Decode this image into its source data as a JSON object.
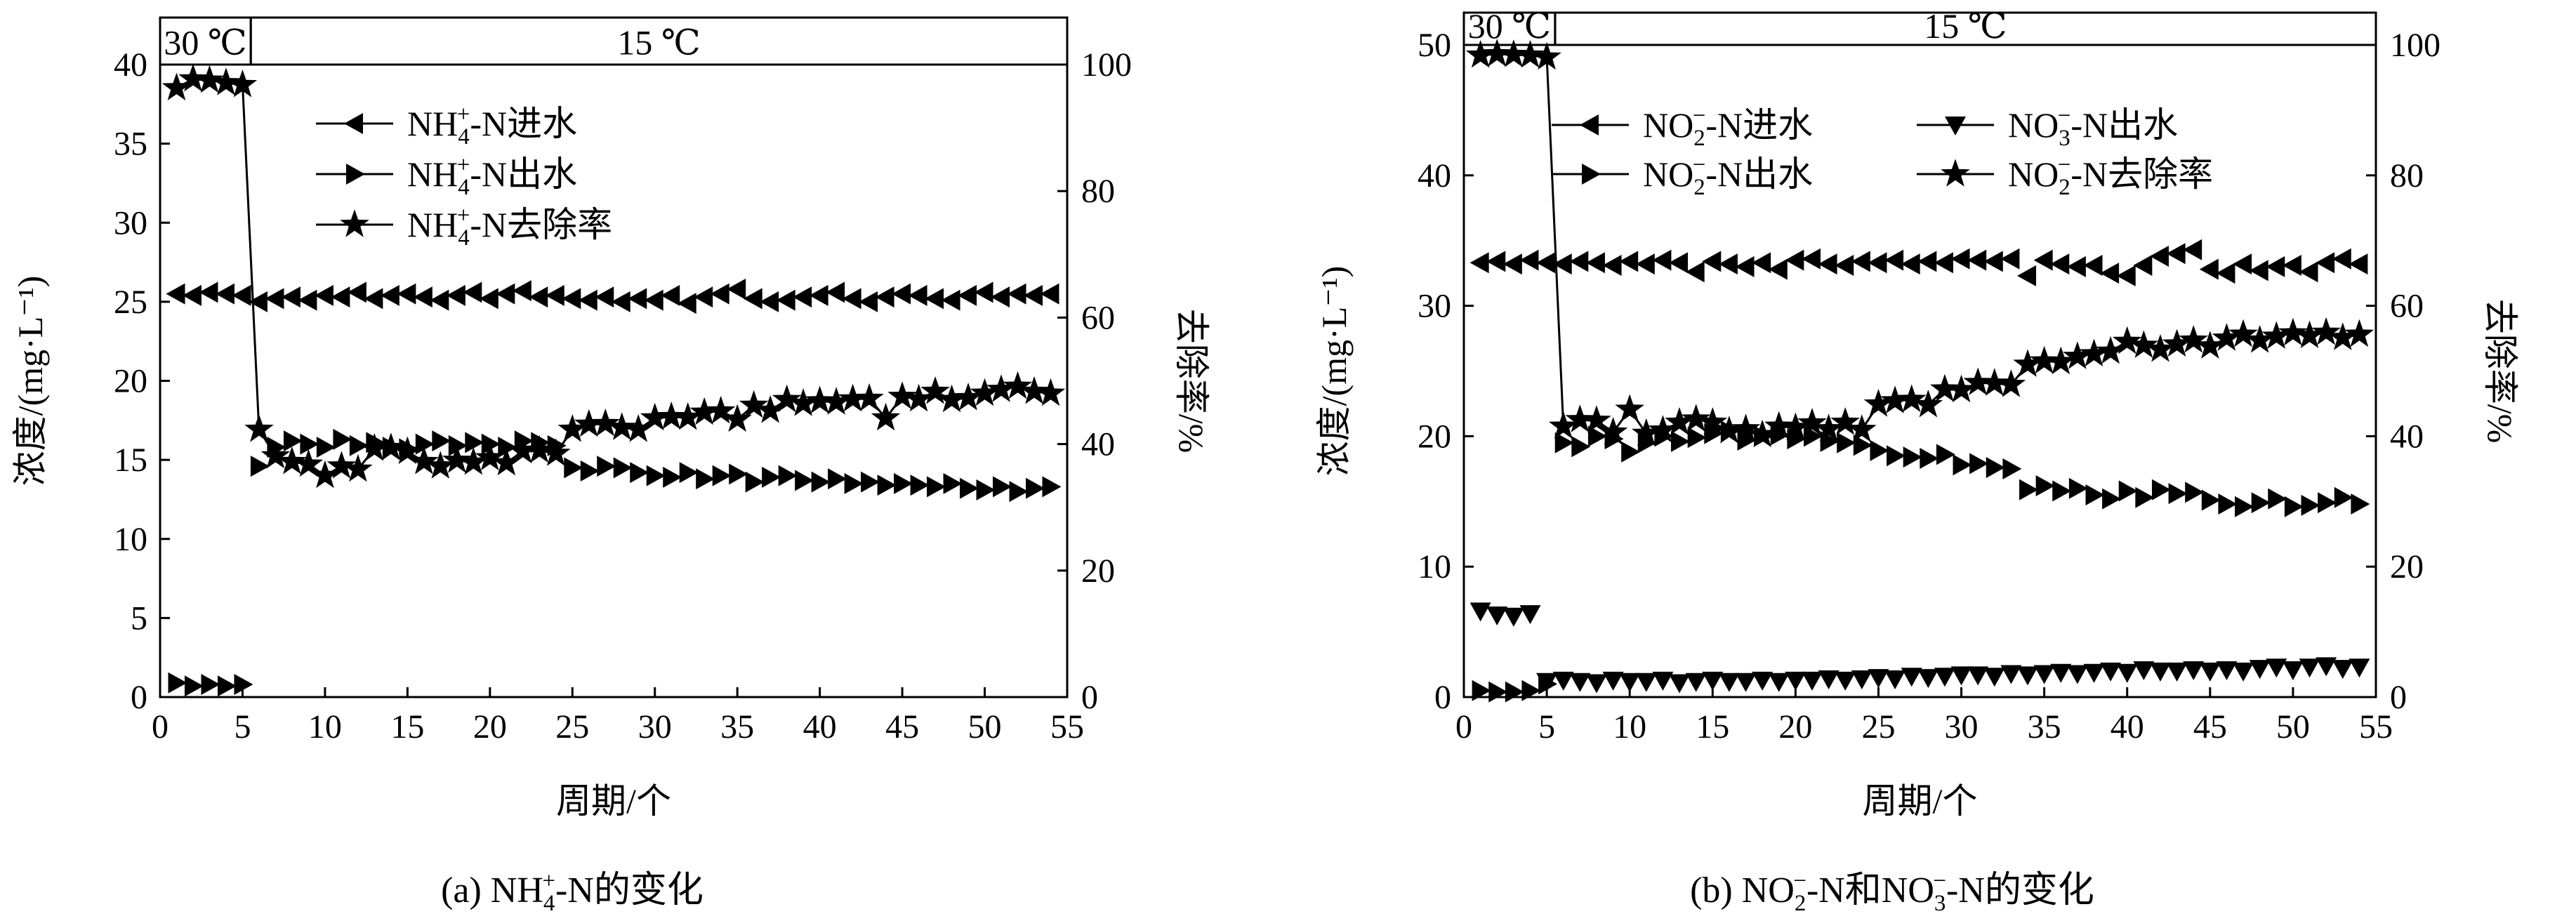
{
  "figure": {
    "panel_a_caption": {
      "prefix": "(a) NH",
      "sub": "4",
      "sup": "+",
      "suffix": "-N的变化"
    },
    "panel_b_caption": {
      "prefix": "(b) NO",
      "sub1": "2",
      "sup1": "−",
      "mid": "-N和NO",
      "sub2": "3",
      "sup2": "−",
      "suffix": "-N的变化"
    }
  },
  "chart_data": [
    {
      "id": "a",
      "type": "scatter",
      "xlabel": "周期/个",
      "ylabel": "浓度/(mg·L⁻¹)",
      "y2label": "去除率/%",
      "xlim": [
        0,
        55
      ],
      "ylim": [
        0,
        40
      ],
      "y2lim": [
        0,
        100
      ],
      "xticks": [
        0,
        5,
        10,
        15,
        20,
        25,
        30,
        35,
        40,
        45,
        50,
        55
      ],
      "yticks": [
        0,
        5,
        10,
        15,
        20,
        25,
        30,
        35,
        40
      ],
      "y2ticks": [
        0,
        20,
        40,
        60,
        80,
        100
      ],
      "temperature_bands": [
        {
          "label": "30 ℃",
          "from": 0,
          "to": 5.5
        },
        {
          "label": "15 ℃",
          "from": 5.5,
          "to": 55
        }
      ],
      "legend_position": "top-center",
      "series": [
        {
          "name": "NH4+-N进水",
          "legend": {
            "base": "NH",
            "sub": "4",
            "sup": "+",
            "rest": "-N进水"
          },
          "axis": "left",
          "marker": "tri-left",
          "line": false,
          "x": [
            1,
            2,
            3,
            4,
            5,
            6,
            7,
            8,
            9,
            10,
            11,
            12,
            13,
            14,
            15,
            16,
            17,
            18,
            19,
            20,
            21,
            22,
            23,
            24,
            25,
            26,
            27,
            28,
            29,
            30,
            31,
            32,
            33,
            34,
            35,
            36,
            37,
            38,
            39,
            40,
            41,
            42,
            43,
            44,
            45,
            46,
            47,
            48,
            49,
            50,
            51,
            52,
            53,
            54
          ],
          "values": [
            25.5,
            25.4,
            25.6,
            25.5,
            25.4,
            25.0,
            25.2,
            25.3,
            25.1,
            25.4,
            25.3,
            25.6,
            25.2,
            25.4,
            25.5,
            25.3,
            25.1,
            25.4,
            25.6,
            25.2,
            25.5,
            25.7,
            25.3,
            25.4,
            25.2,
            25.1,
            25.3,
            25.0,
            25.2,
            25.1,
            25.4,
            24.9,
            25.3,
            25.5,
            25.8,
            25.2,
            25.0,
            25.1,
            25.3,
            25.4,
            25.6,
            25.2,
            25.0,
            25.3,
            25.5,
            25.4,
            25.2,
            25.1,
            25.4,
            25.6,
            25.3,
            25.5,
            25.4,
            25.5
          ]
        },
        {
          "name": "NH4+-N出水",
          "legend": {
            "base": "NH",
            "sub": "4",
            "sup": "+",
            "rest": "-N出水"
          },
          "axis": "left",
          "marker": "tri-right",
          "line": false,
          "x": [
            1,
            2,
            3,
            4,
            5,
            6,
            7,
            8,
            9,
            10,
            11,
            12,
            13,
            14,
            15,
            16,
            17,
            18,
            19,
            20,
            21,
            22,
            23,
            24,
            25,
            26,
            27,
            28,
            29,
            30,
            31,
            32,
            33,
            34,
            35,
            36,
            37,
            38,
            39,
            40,
            41,
            42,
            43,
            44,
            45,
            46,
            47,
            48,
            49,
            50,
            51,
            52,
            53,
            54
          ],
          "values": [
            0.9,
            0.7,
            0.8,
            0.7,
            0.8,
            14.6,
            15.8,
            16.2,
            16.0,
            15.8,
            16.3,
            15.9,
            16.1,
            15.8,
            15.7,
            16.0,
            16.2,
            15.9,
            16.1,
            16.0,
            15.8,
            16.2,
            16.1,
            15.9,
            14.5,
            14.3,
            14.6,
            14.5,
            14.2,
            14.0,
            13.9,
            14.2,
            13.8,
            14.0,
            14.1,
            13.6,
            13.9,
            14.0,
            13.7,
            13.6,
            13.8,
            13.5,
            13.6,
            13.4,
            13.5,
            13.4,
            13.3,
            13.5,
            13.2,
            13.1,
            13.3,
            13.0,
            13.2,
            13.3
          ]
        },
        {
          "name": "NH4+-N去除率",
          "legend": {
            "base": "NH",
            "sub": "4",
            "sup": "+",
            "rest": "-N去除率"
          },
          "axis": "right",
          "marker": "star",
          "line": true,
          "x": [
            1,
            2,
            3,
            4,
            5,
            6,
            7,
            8,
            9,
            10,
            11,
            12,
            13,
            14,
            15,
            16,
            17,
            18,
            19,
            20,
            21,
            22,
            23,
            24,
            25,
            26,
            27,
            28,
            29,
            30,
            31,
            32,
            33,
            34,
            35,
            36,
            37,
            38,
            39,
            40,
            41,
            42,
            43,
            44,
            45,
            46,
            47,
            48,
            49,
            50,
            51,
            52,
            53,
            54
          ],
          "values": [
            96.3,
            97.7,
            97.5,
            97.1,
            96.8,
            42.3,
            38.1,
            37.2,
            36.8,
            35.0,
            36.5,
            36.0,
            39.3,
            39.4,
            38.8,
            37.2,
            36.5,
            37.4,
            37.1,
            37.8,
            37.0,
            38.9,
            39.0,
            38.5,
            42.3,
            43.1,
            43.2,
            42.6,
            42.3,
            44.1,
            44.3,
            44.2,
            45.0,
            45.2,
            43.9,
            46.1,
            45.3,
            47.0,
            46.4,
            46.8,
            46.6,
            47.1,
            47.2,
            44.1,
            47.5,
            47.1,
            48.3,
            47.0,
            47.3,
            48.0,
            48.6,
            49.1,
            48.3,
            48.0
          ]
        }
      ]
    },
    {
      "id": "b",
      "type": "scatter",
      "xlabel": "周期/个",
      "ylabel": "浓度/(mg·L⁻¹)",
      "y2label": "去除率/%",
      "xlim": [
        0,
        55
      ],
      "ylim": [
        0,
        50
      ],
      "y2lim": [
        0,
        100
      ],
      "xticks": [
        0,
        5,
        10,
        15,
        20,
        25,
        30,
        35,
        40,
        45,
        50,
        55
      ],
      "yticks": [
        0,
        10,
        20,
        30,
        40,
        50
      ],
      "y2ticks": [
        0,
        20,
        40,
        60,
        80,
        100
      ],
      "temperature_bands": [
        {
          "label": "30 ℃",
          "from": 0,
          "to": 5.5
        },
        {
          "label": "15 ℃",
          "from": 5.5,
          "to": 55
        }
      ],
      "legend_position": "top-center",
      "series": [
        {
          "name": "NO2−-N进水",
          "legend": {
            "base": "NO",
            "sub": "2",
            "sup": "−",
            "rest": "-N进水"
          },
          "axis": "left",
          "marker": "tri-left",
          "line": false,
          "x": [
            1,
            2,
            3,
            4,
            5,
            6,
            7,
            8,
            9,
            10,
            11,
            12,
            13,
            14,
            15,
            16,
            17,
            18,
            19,
            20,
            21,
            22,
            23,
            24,
            25,
            26,
            27,
            28,
            29,
            30,
            31,
            32,
            33,
            34,
            35,
            36,
            37,
            38,
            39,
            40,
            41,
            42,
            43,
            44,
            45,
            46,
            47,
            48,
            49,
            50,
            51,
            52,
            53,
            54
          ],
          "values": [
            33.3,
            33.4,
            33.2,
            33.5,
            33.3,
            33.2,
            33.4,
            33.3,
            33.1,
            33.4,
            33.2,
            33.5,
            33.3,
            32.6,
            33.4,
            33.2,
            33.0,
            33.3,
            32.8,
            33.5,
            33.6,
            33.2,
            33.1,
            33.4,
            33.3,
            33.5,
            33.2,
            33.4,
            33.3,
            33.6,
            33.5,
            33.4,
            33.6,
            32.3,
            33.5,
            33.2,
            33.0,
            33.1,
            32.5,
            32.3,
            33.1,
            33.8,
            34.0,
            34.3,
            32.8,
            32.5,
            33.2,
            32.7,
            33.0,
            33.1,
            32.6,
            33.3,
            33.6,
            33.2
          ]
        },
        {
          "name": "NO2−-N出水",
          "legend": {
            "base": "NO",
            "sub": "2",
            "sup": "−",
            "rest": "-N出水"
          },
          "axis": "left",
          "marker": "tri-right",
          "line": false,
          "x": [
            1,
            2,
            3,
            4,
            5,
            6,
            7,
            8,
            9,
            10,
            11,
            12,
            13,
            14,
            15,
            16,
            17,
            18,
            19,
            20,
            21,
            22,
            23,
            24,
            25,
            26,
            27,
            28,
            29,
            30,
            31,
            32,
            33,
            34,
            35,
            36,
            37,
            38,
            39,
            40,
            41,
            42,
            43,
            44,
            45,
            46,
            47,
            48,
            49,
            50,
            51,
            52,
            53,
            54
          ],
          "values": [
            0.5,
            0.4,
            0.4,
            0.5,
            1.0,
            19.5,
            19.2,
            20.0,
            19.8,
            18.8,
            19.5,
            20.0,
            19.6,
            19.9,
            20.2,
            20.4,
            19.7,
            20.0,
            20.1,
            19.8,
            20.0,
            19.6,
            19.5,
            19.3,
            18.9,
            18.5,
            18.4,
            18.3,
            18.6,
            17.8,
            17.9,
            17.6,
            17.5,
            15.9,
            16.2,
            15.8,
            16.0,
            15.5,
            15.2,
            15.8,
            15.3,
            15.9,
            15.6,
            15.7,
            15.1,
            14.8,
            14.6,
            14.9,
            15.2,
            14.6,
            14.7,
            14.9,
            15.3,
            14.8
          ]
        },
        {
          "name": "NO3−-N出水",
          "legend": {
            "base": "NO",
            "sub": "3",
            "sup": "−",
            "rest": "-N出水"
          },
          "axis": "left",
          "marker": "tri-down",
          "line": false,
          "x": [
            1,
            2,
            3,
            4,
            5,
            6,
            7,
            8,
            9,
            10,
            11,
            12,
            13,
            14,
            15,
            16,
            17,
            18,
            19,
            20,
            21,
            22,
            23,
            24,
            25,
            26,
            27,
            28,
            29,
            30,
            31,
            32,
            33,
            34,
            35,
            36,
            37,
            38,
            39,
            40,
            41,
            42,
            43,
            44,
            45,
            46,
            47,
            48,
            49,
            50,
            51,
            52,
            53,
            54
          ],
          "values": [
            6.6,
            6.3,
            6.2,
            6.4,
            1.2,
            1.3,
            1.2,
            1.1,
            1.3,
            1.2,
            1.2,
            1.3,
            1.1,
            1.2,
            1.3,
            1.2,
            1.2,
            1.3,
            1.2,
            1.3,
            1.3,
            1.4,
            1.3,
            1.4,
            1.5,
            1.4,
            1.6,
            1.5,
            1.6,
            1.7,
            1.7,
            1.6,
            1.8,
            1.7,
            1.8,
            1.9,
            1.8,
            1.9,
            2.0,
            1.9,
            2.1,
            2.0,
            2.0,
            2.1,
            2.0,
            2.1,
            2.0,
            2.2,
            2.3,
            2.1,
            2.3,
            2.4,
            2.2,
            2.3
          ]
        },
        {
          "name": "NO2−-N去除率",
          "legend": {
            "base": "NO",
            "sub": "2",
            "sup": "−",
            "rest": "-N去除率"
          },
          "axis": "right",
          "marker": "star",
          "line": true,
          "x": [
            1,
            2,
            3,
            4,
            5,
            6,
            7,
            8,
            9,
            10,
            11,
            12,
            13,
            14,
            15,
            16,
            17,
            18,
            19,
            20,
            21,
            22,
            23,
            24,
            25,
            26,
            27,
            28,
            29,
            30,
            31,
            32,
            33,
            34,
            35,
            36,
            37,
            38,
            39,
            40,
            41,
            42,
            43,
            44,
            45,
            46,
            47,
            48,
            49,
            50,
            51,
            52,
            53,
            54
          ],
          "values": [
            98.4,
            98.6,
            98.5,
            98.4,
            98.1,
            41.5,
            42.5,
            42.4,
            40.6,
            44.1,
            40.4,
            40.9,
            42.1,
            42.6,
            42.1,
            40.8,
            41.1,
            40.2,
            41.5,
            41.3,
            42.0,
            41.1,
            42.1,
            41.0,
            44.9,
            45.4,
            45.6,
            44.8,
            47.2,
            47.1,
            48.2,
            48.1,
            47.9,
            51.0,
            51.5,
            51.4,
            52.2,
            52.6,
            53.0,
            54.5,
            53.9,
            53.3,
            54.1,
            54.7,
            53.8,
            55.0,
            55.6,
            54.7,
            55.3,
            55.8,
            55.4,
            55.9,
            55.1,
            55.6
          ]
        }
      ]
    }
  ]
}
